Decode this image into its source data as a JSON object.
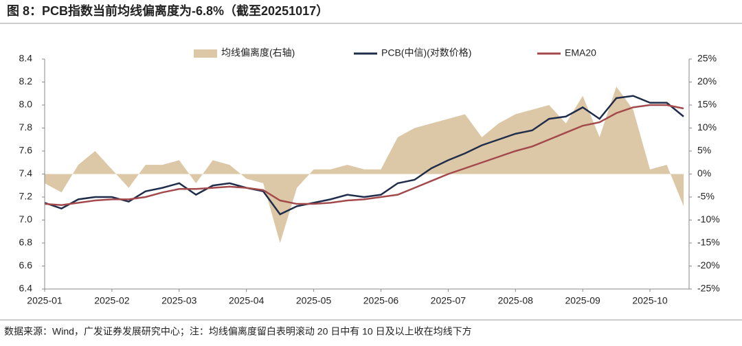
{
  "title": "图 8：PCB指数当前均线偏离度为-6.8%（截至20251017）",
  "source": "数据来源：Wind，广发证券发展研究中心；注：均线偏离度留白表明滚动 20 日中有 10 日及以上收在均线下方",
  "chart_data": {
    "type": "line",
    "legend": "top",
    "categories": [
      "2025-01",
      null,
      null,
      null,
      "2025-02",
      null,
      null,
      null,
      "2025-03",
      null,
      null,
      null,
      "2025-04",
      null,
      null,
      null,
      "2025-05",
      null,
      null,
      null,
      "2025-06",
      null,
      null,
      null,
      "2025-07",
      null,
      null,
      null,
      "2025-08",
      null,
      null,
      null,
      "2025-09",
      null,
      null,
      null,
      "2025-10",
      null,
      null
    ],
    "series": [
      {
        "name": "均线偏离度(右轴)",
        "type": "area",
        "axis": "y2",
        "color": "#dcc7a6",
        "values": [
          -2,
          -4,
          2,
          5,
          1,
          -3,
          2,
          2,
          3,
          -2,
          3,
          2,
          -1,
          -2,
          -15,
          -3,
          1,
          1,
          2,
          1,
          1,
          8,
          10,
          11,
          12,
          13,
          8,
          11,
          13,
          14,
          15,
          11,
          17,
          8,
          19,
          14,
          1,
          2,
          -7
        ]
      },
      {
        "name": "PCB(中信)(对数价格)",
        "type": "line",
        "color": "#1f2d4a",
        "values": [
          7.15,
          7.1,
          7.18,
          7.2,
          7.2,
          7.16,
          7.25,
          7.28,
          7.32,
          7.22,
          7.3,
          7.32,
          7.28,
          7.25,
          7.05,
          7.12,
          7.15,
          7.18,
          7.22,
          7.2,
          7.22,
          7.32,
          7.35,
          7.45,
          7.52,
          7.58,
          7.65,
          7.7,
          7.75,
          7.78,
          7.88,
          7.9,
          7.98,
          7.88,
          8.06,
          8.08,
          8.02,
          8.02,
          7.9
        ]
      },
      {
        "name": "EMA20",
        "type": "line",
        "color": "#a3494b",
        "values": [
          7.14,
          7.13,
          7.15,
          7.17,
          7.18,
          7.18,
          7.2,
          7.24,
          7.27,
          7.27,
          7.28,
          7.29,
          7.28,
          7.26,
          7.17,
          7.14,
          7.14,
          7.15,
          7.17,
          7.18,
          7.2,
          7.22,
          7.28,
          7.34,
          7.4,
          7.45,
          7.5,
          7.55,
          7.6,
          7.64,
          7.7,
          7.76,
          7.82,
          7.85,
          7.93,
          7.98,
          8.0,
          8.0,
          7.97
        ]
      }
    ],
    "ylim": [
      6.4,
      8.4
    ],
    "yticks": [
      6.4,
      6.6,
      6.8,
      {
        "value": 7,
        "label": "7.0"
      },
      7.2,
      7.4,
      7.6,
      7.8,
      {
        "value": 8,
        "label": "8.0"
      },
      8.2,
      8.4
    ],
    "y2lim": [
      -25,
      25
    ],
    "y2ticks": [
      {
        "value": -25,
        "label": "-25%"
      },
      {
        "value": -20,
        "label": "-20%"
      },
      {
        "value": -15,
        "label": "-15%"
      },
      {
        "value": -10,
        "label": "-10%"
      },
      {
        "value": -5,
        "label": "-5%"
      },
      {
        "value": 0,
        "label": "0%"
      },
      {
        "value": 5,
        "label": "5%"
      },
      {
        "value": 10,
        "label": "10%"
      },
      {
        "value": 15,
        "label": "15%"
      },
      {
        "value": 20,
        "label": "20%"
      },
      {
        "value": 25,
        "label": "25%"
      }
    ]
  }
}
